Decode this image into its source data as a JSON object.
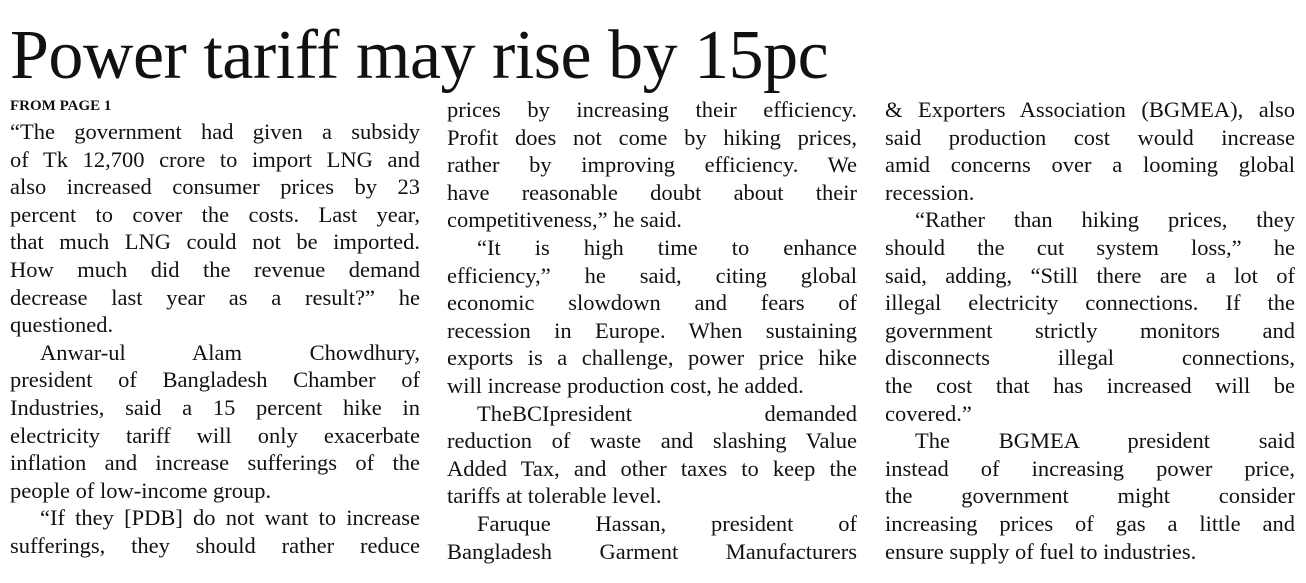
{
  "headline": "Power tariff may rise by 15pc",
  "kicker": "FROM PAGE 1",
  "columns": [
    {
      "lines": [
        {
          "t": "“The government had given a subsidy",
          "ind": false,
          "last": false
        },
        {
          "t": "of Tk 12,700 crore to import LNG and",
          "ind": false,
          "last": false
        },
        {
          "t": "also increased consumer prices by 23",
          "ind": false,
          "last": false
        },
        {
          "t": "percent to cover the costs. Last year,",
          "ind": false,
          "last": false
        },
        {
          "t": "that much LNG could not be imported.",
          "ind": false,
          "last": false
        },
        {
          "t": "How much did the revenue demand",
          "ind": false,
          "last": false
        },
        {
          "t": "decrease last year as a result?” he",
          "ind": false,
          "last": false
        },
        {
          "t": "questioned.",
          "ind": false,
          "last": true
        },
        {
          "t": "Anwar-ul Alam Chowdhury,",
          "ind": true,
          "last": false
        },
        {
          "t": "president of Bangladesh Chamber of",
          "ind": false,
          "last": false
        },
        {
          "t": "Industries, said a 15 percent hike in",
          "ind": false,
          "last": false
        },
        {
          "t": "electricity tariff will only exacerbate",
          "ind": false,
          "last": false
        },
        {
          "t": "inflation and increase sufferings of the",
          "ind": false,
          "last": false
        },
        {
          "t": "people of low-income group.",
          "ind": false,
          "last": true
        },
        {
          "t": "“If they [PDB] do not want to increase",
          "ind": true,
          "last": false
        },
        {
          "t": "sufferings, they should rather reduce",
          "ind": false,
          "last": false
        }
      ]
    },
    {
      "lines": [
        {
          "t": "prices by increasing their efficiency.",
          "ind": false,
          "last": false
        },
        {
          "t": "Profit does not come by hiking prices,",
          "ind": false,
          "last": false
        },
        {
          "t": "rather by improving efficiency. We",
          "ind": false,
          "last": false
        },
        {
          "t": "have reasonable doubt about their",
          "ind": false,
          "last": false
        },
        {
          "t": "competitiveness,” he said.",
          "ind": false,
          "last": true
        },
        {
          "t": "“It is high time to enhance",
          "ind": true,
          "last": false
        },
        {
          "t": "efficiency,” he said, citing global",
          "ind": false,
          "last": false
        },
        {
          "t": "economic slowdown and fears of",
          "ind": false,
          "last": false
        },
        {
          "t": "recession in Europe. When sustaining",
          "ind": false,
          "last": false
        },
        {
          "t": "exports is a challenge, power price hike",
          "ind": false,
          "last": false
        },
        {
          "t": "will increase production cost, he added.",
          "ind": false,
          "last": true
        },
        {
          "t": "TheBCIpresident demanded",
          "ind": true,
          "last": false
        },
        {
          "t": "reduction of waste and slashing Value",
          "ind": false,
          "last": false
        },
        {
          "t": "Added Tax, and other taxes to keep the",
          "ind": false,
          "last": false
        },
        {
          "t": "tariffs at tolerable level.",
          "ind": false,
          "last": true
        },
        {
          "t": "Faruque Hassan, president of",
          "ind": true,
          "last": false
        },
        {
          "t": "Bangladesh Garment Manufacturers",
          "ind": false,
          "last": false
        }
      ]
    },
    {
      "lines": [
        {
          "t": "& Exporters Association (BGMEA), also",
          "ind": false,
          "last": false
        },
        {
          "t": "said production cost would increase",
          "ind": false,
          "last": false
        },
        {
          "t": "amid concerns over a looming global",
          "ind": false,
          "last": false
        },
        {
          "t": "recession.",
          "ind": false,
          "last": true
        },
        {
          "t": "“Rather than hiking prices, they",
          "ind": true,
          "last": false
        },
        {
          "t": "should the cut system loss,” he",
          "ind": false,
          "last": false
        },
        {
          "t": "said, adding, “Still there are a lot of",
          "ind": false,
          "last": false
        },
        {
          "t": "illegal electricity connections. If the",
          "ind": false,
          "last": false
        },
        {
          "t": "government strictly monitors and",
          "ind": false,
          "last": false
        },
        {
          "t": "disconnects illegal connections,",
          "ind": false,
          "last": false
        },
        {
          "t": "the cost that has increased will be",
          "ind": false,
          "last": false
        },
        {
          "t": "covered.”",
          "ind": false,
          "last": true
        },
        {
          "t": "The BGMEA president said",
          "ind": true,
          "last": false
        },
        {
          "t": "instead of increasing power price,",
          "ind": false,
          "last": false
        },
        {
          "t": "the government might consider",
          "ind": false,
          "last": false
        },
        {
          "t": "increasing prices of gas a little and",
          "ind": false,
          "last": false
        },
        {
          "t": "ensure supply of fuel to industries.",
          "ind": false,
          "last": true
        }
      ]
    }
  ]
}
